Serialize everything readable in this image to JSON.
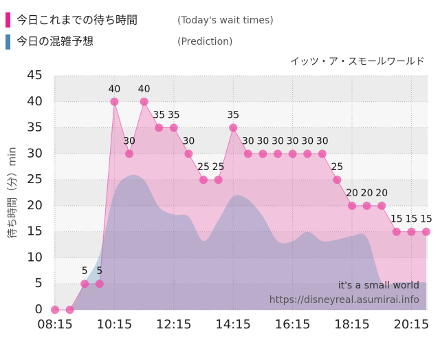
{
  "chart_data": {
    "type": "line",
    "subtitle": "イッツ・ア・スモールワールド",
    "y_label": "待ち時間（分）min",
    "annotations": [
      "it's a small world",
      "https://disneyreal.asumirai.info"
    ],
    "x": [
      "08:15",
      "08:45",
      "09:15",
      "09:45",
      "10:15",
      "10:45",
      "11:15",
      "11:45",
      "12:15",
      "12:45",
      "13:15",
      "13:45",
      "14:15",
      "14:45",
      "15:15",
      "15:45",
      "16:15",
      "16:45",
      "17:15",
      "17:45",
      "18:15",
      "18:45",
      "19:15",
      "19:45",
      "20:15",
      "20:45"
    ],
    "series": [
      {
        "name": "今日これまでの待ち時間",
        "legend_note": "(Today's wait times)",
        "color": "#ec4fa6",
        "values": [
          0,
          0,
          5,
          5,
          40,
          30,
          40,
          35,
          35,
          30,
          25,
          25,
          35,
          30,
          30,
          30,
          30,
          30,
          30,
          25,
          20,
          20,
          20,
          15,
          15,
          15
        ],
        "value_labels": [
          null,
          null,
          "5",
          "5",
          "40",
          "30",
          "40",
          "35",
          "35",
          "30",
          "25",
          "25",
          "35",
          "30",
          "30",
          "30",
          "30",
          "30",
          "30",
          "25",
          "20",
          "20",
          "20",
          "15",
          "15",
          "15"
        ]
      },
      {
        "name": "今日の混雑予想",
        "legend_note": "(Prediction)",
        "color": "#4a86b4",
        "values": [
          0,
          0,
          5.3,
          10.6,
          22.5,
          25.8,
          24.9,
          19.8,
          18.3,
          17.9,
          13.2,
          17.2,
          21.8,
          21.2,
          17.9,
          13.2,
          13.2,
          15,
          13.2,
          13.5,
          14.2,
          13.9,
          5.3,
          5.3,
          5.3,
          5.3
        ]
      }
    ],
    "xlim": [
      "08:15",
      "20:45"
    ],
    "xticks": [
      "08:15",
      "10:15",
      "12:15",
      "14:15",
      "16:15",
      "18:15",
      "20:15"
    ],
    "ylim": [
      0,
      45
    ],
    "yticks": [
      0,
      5,
      10,
      15,
      20,
      25,
      30,
      35,
      40,
      45
    ],
    "grid": true
  }
}
